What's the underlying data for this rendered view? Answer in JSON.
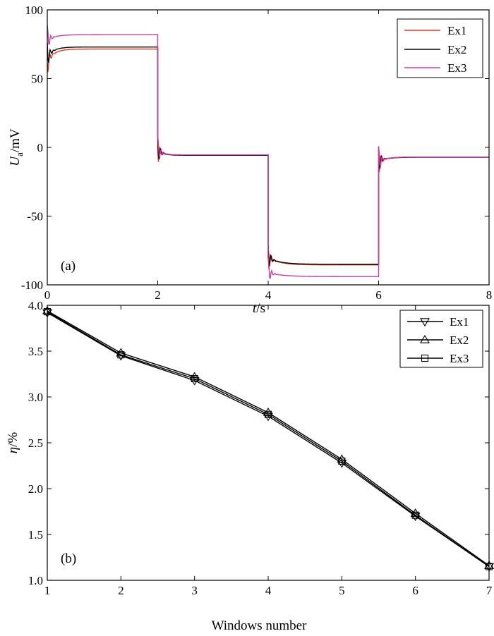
{
  "chart_data": [
    {
      "type": "line",
      "panel_label": "(a)",
      "xlabel": {
        "symbol": "t",
        "unit": "/s"
      },
      "ylabel": {
        "symbol": "U",
        "subscript": "a",
        "unit": "/mV"
      },
      "xlim": [
        0,
        8
      ],
      "ylim": [
        -100,
        100
      ],
      "xticks": [
        0,
        2,
        4,
        6,
        8
      ],
      "yticks": [
        -100,
        -50,
        0,
        50,
        100
      ],
      "legend_position": "top-right",
      "grid": false,
      "series": [
        {
          "name": "Ex1",
          "color": "#e03a1e",
          "segments": [
            {
              "start": 0.0,
              "end": 2.0,
              "initial": 62,
              "final": 71.5,
              "tau": 0.12
            },
            {
              "start": 2.0,
              "end": 4.0,
              "initial": -2,
              "final": -5.5,
              "tau": 0.1
            },
            {
              "start": 4.0,
              "end": 6.0,
              "initial": -80,
              "final": -85.5,
              "tau": 0.2
            },
            {
              "start": 6.0,
              "end": 8.0,
              "initial": -10,
              "final": -7,
              "tau": 0.15
            }
          ]
        },
        {
          "name": "Ex2",
          "color": "#000000",
          "segments": [
            {
              "start": 0.0,
              "end": 2.0,
              "initial": 66,
              "final": 73,
              "tau": 0.12
            },
            {
              "start": 2.0,
              "end": 4.0,
              "initial": -2,
              "final": -5.8,
              "tau": 0.1
            },
            {
              "start": 4.0,
              "end": 6.0,
              "initial": -80,
              "final": -85,
              "tau": 0.2
            },
            {
              "start": 6.0,
              "end": 8.0,
              "initial": -10,
              "final": -7.2,
              "tau": 0.15
            }
          ]
        },
        {
          "name": "Ex3",
          "color": "#c63fa8",
          "segments": [
            {
              "start": 0.0,
              "end": 2.0,
              "initial": 78,
              "final": 82,
              "tau": 0.15
            },
            {
              "start": 2.0,
              "end": 4.0,
              "initial": -2,
              "final": -5.5,
              "tau": 0.1
            },
            {
              "start": 4.0,
              "end": 6.0,
              "initial": -91,
              "final": -94,
              "tau": 0.25
            },
            {
              "start": 6.0,
              "end": 8.0,
              "initial": -10,
              "final": -7,
              "tau": 0.15
            }
          ]
        }
      ]
    },
    {
      "type": "line",
      "panel_label": "(b)",
      "xlabel": "Windows number",
      "ylabel": {
        "symbol": "η",
        "unit": "/%"
      },
      "xlim": [
        1,
        7
      ],
      "ylim": [
        1.0,
        4.0
      ],
      "xticks": [
        1,
        2,
        3,
        4,
        5,
        6,
        7
      ],
      "yticks": [
        "1.0",
        "1.5",
        "2.0",
        "2.5",
        "3.0",
        "3.5",
        "4.0"
      ],
      "legend_position": "top-right",
      "grid": false,
      "x": [
        1,
        2,
        3,
        4,
        5,
        6,
        7
      ],
      "series": [
        {
          "name": "Ex1",
          "marker": "triangle-down",
          "color": "#000000",
          "values": [
            3.92,
            3.45,
            3.18,
            2.79,
            2.28,
            1.7,
            1.15
          ]
        },
        {
          "name": "Ex2",
          "marker": "triangle-up",
          "color": "#000000",
          "values": [
            3.94,
            3.48,
            3.22,
            2.83,
            2.32,
            1.73,
            1.16
          ]
        },
        {
          "name": "Ex3",
          "marker": "square",
          "color": "#000000",
          "values": [
            3.93,
            3.46,
            3.2,
            2.81,
            2.3,
            1.71,
            1.15
          ]
        }
      ]
    }
  ]
}
